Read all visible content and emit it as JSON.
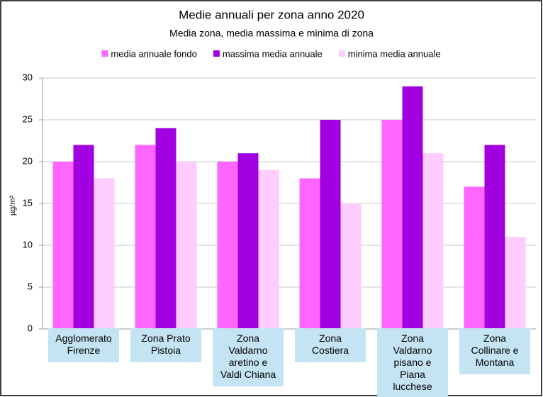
{
  "chart_data": {
    "type": "bar",
    "title": "Medie annuali per zona anno 2020",
    "subtitle": "Media zona, media massima e minima di zona",
    "y_label": "µg/m³",
    "categories": [
      "Agglomerato Firenze",
      "Zona Prato Pistoia",
      "Zona Valdarno aretino e Valdi Chiana",
      "Zona Costiera",
      "Zona Valdarno pisano e Piana lucchese",
      "Zona Collinare e Montana"
    ],
    "series": [
      {
        "name": "media annuale fondo",
        "color": "#ff66ff",
        "values": [
          20,
          22,
          20,
          18,
          25,
          17
        ]
      },
      {
        "name": "massima media annuale",
        "color": "#a100e0",
        "values": [
          22,
          24,
          21,
          25,
          29,
          22
        ]
      },
      {
        "name": "minima media annuale",
        "color": "#ffccff",
        "values": [
          18,
          20,
          19,
          15,
          21,
          11
        ]
      }
    ],
    "ylim": [
      0,
      30
    ],
    "yticks": [
      0,
      5,
      10,
      15,
      20,
      25,
      30
    ],
    "grid": true,
    "legend": "top"
  }
}
